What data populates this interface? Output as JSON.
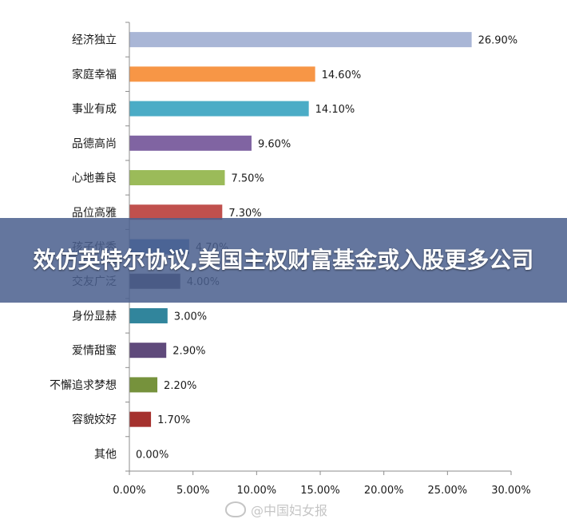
{
  "headline": "效仿英特尔协议,美国主权财富基金或入股更多公司",
  "watermark": "@中国妇女报",
  "colors": {
    "banner": "#4a608e",
    "axis": "#8c8c8c"
  },
  "chart_data": {
    "type": "bar",
    "orientation": "horizontal",
    "categories": [
      "经济独立",
      "家庭幸福",
      "事业有成",
      "品德高尚",
      "心地善良",
      "品位高雅",
      "孩子优秀",
      "交友广泛",
      "身份显赫",
      "爱情甜蜜",
      "不懈追求梦想",
      "容貌姣好",
      "其他"
    ],
    "values": [
      26.9,
      14.6,
      14.1,
      9.6,
      7.5,
      7.3,
      4.7,
      4.0,
      3.0,
      2.9,
      2.2,
      1.7,
      0.0
    ],
    "value_labels": [
      "26.90%",
      "14.60%",
      "14.10%",
      "9.60%",
      "7.50%",
      "7.30%",
      "4.70%",
      "4.00%",
      "3.00%",
      "2.90%",
      "2.20%",
      "1.70%",
      "0.00%"
    ],
    "bar_colors": [
      "#a9b6d6",
      "#f79646",
      "#4bacc6",
      "#8064a2",
      "#9bbb59",
      "#c0504d",
      "#4f81bd",
      "#4a4458",
      "#31859c",
      "#5f4a7b",
      "#76923c",
      "#a5312e",
      "#888888"
    ],
    "xlim": [
      0,
      30
    ],
    "xticks": [
      0,
      5,
      10,
      15,
      20,
      25,
      30
    ],
    "xtick_labels": [
      "0.00%",
      "5.00%",
      "10.00%",
      "15.00%",
      "20.00%",
      "25.00%",
      "30.00%"
    ],
    "title": "",
    "xlabel": "",
    "ylabel": "",
    "grid": false,
    "legend": "none"
  }
}
